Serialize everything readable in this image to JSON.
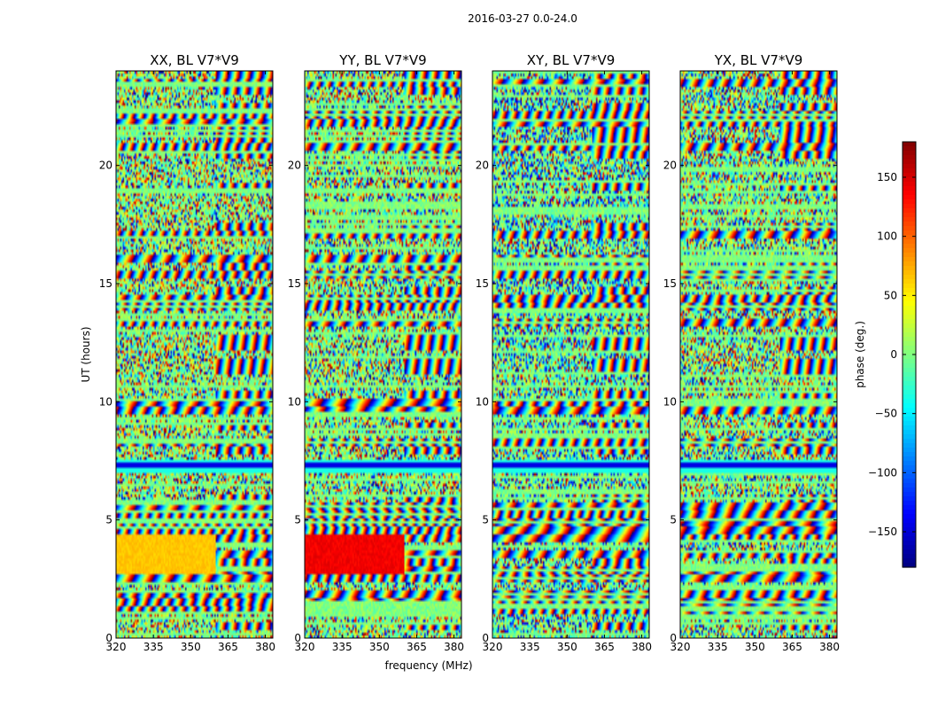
{
  "figure": {
    "suptitle": "2016-03-27 0.0-24.0"
  },
  "chart_data": {
    "type": "heatmap",
    "suptitle": "2016-03-27 0.0-24.0",
    "xlabel": "frequency (MHz)",
    "ylabel": "UT (hours)",
    "xlim": [
      320,
      383
    ],
    "ylim": [
      0,
      24
    ],
    "xticks": [
      320,
      335,
      350,
      365,
      380
    ],
    "yticks": [
      0,
      5,
      10,
      15,
      20
    ],
    "colormap": "jet",
    "colorbar": {
      "label": "phase (deg.)",
      "range": [
        -180,
        180
      ],
      "ticks": [
        -150,
        -100,
        -50,
        0,
        50,
        100,
        150
      ],
      "tick_labels": [
        "−150",
        "−100",
        "−50",
        "0",
        "50",
        "100",
        "150"
      ]
    },
    "panels": [
      {
        "title": "XX, BL V7*V9",
        "pol": "XX"
      },
      {
        "title": "YY, BL V7*V9",
        "pol": "YY"
      },
      {
        "title": "XY, BL V7*V9",
        "pol": "XY"
      },
      {
        "title": "YX, BL V7*V9",
        "pol": "YX"
      }
    ],
    "colors": {
      "jet_stops": [
        "#00007f",
        "#0000ff",
        "#007fff",
        "#00ffff",
        "#7fff7f",
        "#ffff00",
        "#ff7f00",
        "#ff0000",
        "#7f0000"
      ]
    }
  }
}
